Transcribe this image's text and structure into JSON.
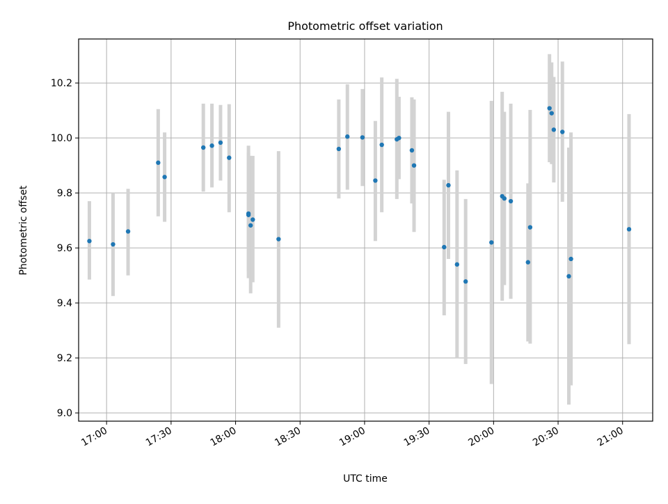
{
  "chart_data": {
    "type": "scatter",
    "title": "Photometric offset variation",
    "xlabel": "UTC time",
    "ylabel": "Photometric offset",
    "x_ticks": [
      "17:00",
      "17:30",
      "18:00",
      "18:30",
      "19:00",
      "19:30",
      "20:00",
      "20:30",
      "21:00"
    ],
    "y_ticks": [
      "9.0",
      "9.2",
      "9.4",
      "9.6",
      "9.8",
      "10.0",
      "10.2"
    ],
    "xlim": [
      "16:47",
      "21:14"
    ],
    "ylim": [
      8.97,
      10.36
    ],
    "grid": true,
    "colors": {
      "point": "#1f77b4",
      "errorbar": "#d3d3d3",
      "grid": "#b0b0b0"
    },
    "points": [
      {
        "t": "16:52",
        "y": 9.625,
        "lo": 9.485,
        "hi": 9.77
      },
      {
        "t": "17:03",
        "y": 9.613,
        "lo": 9.425,
        "hi": 9.8
      },
      {
        "t": "17:10",
        "y": 9.66,
        "lo": 9.5,
        "hi": 9.815
      },
      {
        "t": "17:24",
        "y": 9.91,
        "lo": 9.715,
        "hi": 10.105
      },
      {
        "t": "17:27",
        "y": 9.858,
        "lo": 9.695,
        "hi": 10.02
      },
      {
        "t": "17:45",
        "y": 9.965,
        "lo": 9.805,
        "hi": 10.125
      },
      {
        "t": "17:49",
        "y": 9.972,
        "lo": 9.82,
        "hi": 10.125
      },
      {
        "t": "17:53",
        "y": 9.983,
        "lo": 9.845,
        "hi": 10.12
      },
      {
        "t": "17:57",
        "y": 9.928,
        "lo": 9.73,
        "hi": 10.123
      },
      {
        "t": "18:06",
        "y": 9.725,
        "lo": 9.515,
        "hi": 9.972
      },
      {
        "t": "18:06",
        "y": 9.72,
        "lo": 9.49,
        "hi": 9.945
      },
      {
        "t": "18:07",
        "y": 9.682,
        "lo": 9.435,
        "hi": 9.935
      },
      {
        "t": "18:08",
        "y": 9.703,
        "lo": 9.475,
        "hi": 9.935
      },
      {
        "t": "18:20",
        "y": 9.632,
        "lo": 9.31,
        "hi": 9.952
      },
      {
        "t": "18:48",
        "y": 9.96,
        "lo": 9.78,
        "hi": 10.14
      },
      {
        "t": "18:52",
        "y": 10.005,
        "lo": 9.812,
        "hi": 10.195
      },
      {
        "t": "18:59",
        "y": 10.002,
        "lo": 9.825,
        "hi": 10.178
      },
      {
        "t": "19:05",
        "y": 9.845,
        "lo": 9.625,
        "hi": 10.062
      },
      {
        "t": "19:08",
        "y": 9.975,
        "lo": 9.73,
        "hi": 10.22
      },
      {
        "t": "19:15",
        "y": 9.995,
        "lo": 9.778,
        "hi": 10.215
      },
      {
        "t": "19:16",
        "y": 10.0,
        "lo": 9.85,
        "hi": 10.15
      },
      {
        "t": "19:22",
        "y": 9.955,
        "lo": 9.762,
        "hi": 10.148
      },
      {
        "t": "19:23",
        "y": 9.9,
        "lo": 9.658,
        "hi": 10.14
      },
      {
        "t": "19:37",
        "y": 9.603,
        "lo": 9.355,
        "hi": 9.848
      },
      {
        "t": "19:39",
        "y": 9.828,
        "lo": 9.56,
        "hi": 10.095
      },
      {
        "t": "19:43",
        "y": 9.54,
        "lo": 9.2,
        "hi": 9.882
      },
      {
        "t": "19:47",
        "y": 9.478,
        "lo": 9.178,
        "hi": 9.778
      },
      {
        "t": "19:59",
        "y": 9.62,
        "lo": 9.105,
        "hi": 10.135
      },
      {
        "t": "20:04",
        "y": 9.788,
        "lo": 9.408,
        "hi": 10.168
      },
      {
        "t": "20:05",
        "y": 9.78,
        "lo": 9.465,
        "hi": 10.095
      },
      {
        "t": "20:08",
        "y": 9.77,
        "lo": 9.415,
        "hi": 10.125
      },
      {
        "t": "20:16",
        "y": 9.548,
        "lo": 9.26,
        "hi": 9.835
      },
      {
        "t": "20:17",
        "y": 9.675,
        "lo": 9.252,
        "hi": 10.102
      },
      {
        "t": "20:26",
        "y": 10.108,
        "lo": 9.912,
        "hi": 10.305
      },
      {
        "t": "20:27",
        "y": 10.09,
        "lo": 9.905,
        "hi": 10.275
      },
      {
        "t": "20:28",
        "y": 10.03,
        "lo": 9.838,
        "hi": 10.222
      },
      {
        "t": "20:32",
        "y": 10.022,
        "lo": 9.768,
        "hi": 10.278
      },
      {
        "t": "20:35",
        "y": 9.497,
        "lo": 9.03,
        "hi": 9.965
      },
      {
        "t": "20:36",
        "y": 9.56,
        "lo": 9.1,
        "hi": 10.02
      },
      {
        "t": "21:03",
        "y": 9.668,
        "lo": 9.25,
        "hi": 10.087
      }
    ]
  }
}
